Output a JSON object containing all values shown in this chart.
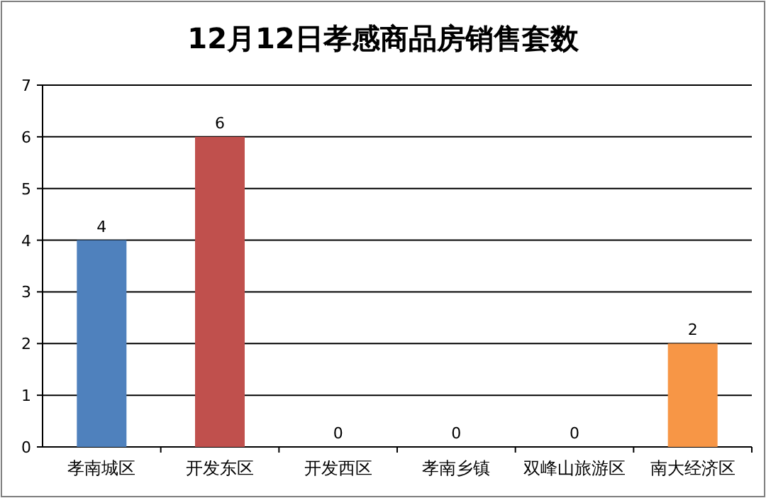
{
  "chart_data": {
    "type": "bar",
    "title": "12月12日孝感商品房销售套数",
    "categories": [
      "孝南城区",
      "开发东区",
      "开发西区",
      "孝南乡镇",
      "双峰山旅游区",
      "南大经济区"
    ],
    "values": [
      4,
      6,
      0,
      0,
      0,
      2
    ],
    "colors": [
      "#4f81bd",
      "#c0504d",
      "#9bbb59",
      "#8064a2",
      "#4bacc6",
      "#f79646"
    ],
    "ylim": [
      0,
      7
    ],
    "yticks": [
      0,
      1,
      2,
      3,
      4,
      5,
      6,
      7
    ],
    "grid": "y",
    "data_labels": true
  }
}
